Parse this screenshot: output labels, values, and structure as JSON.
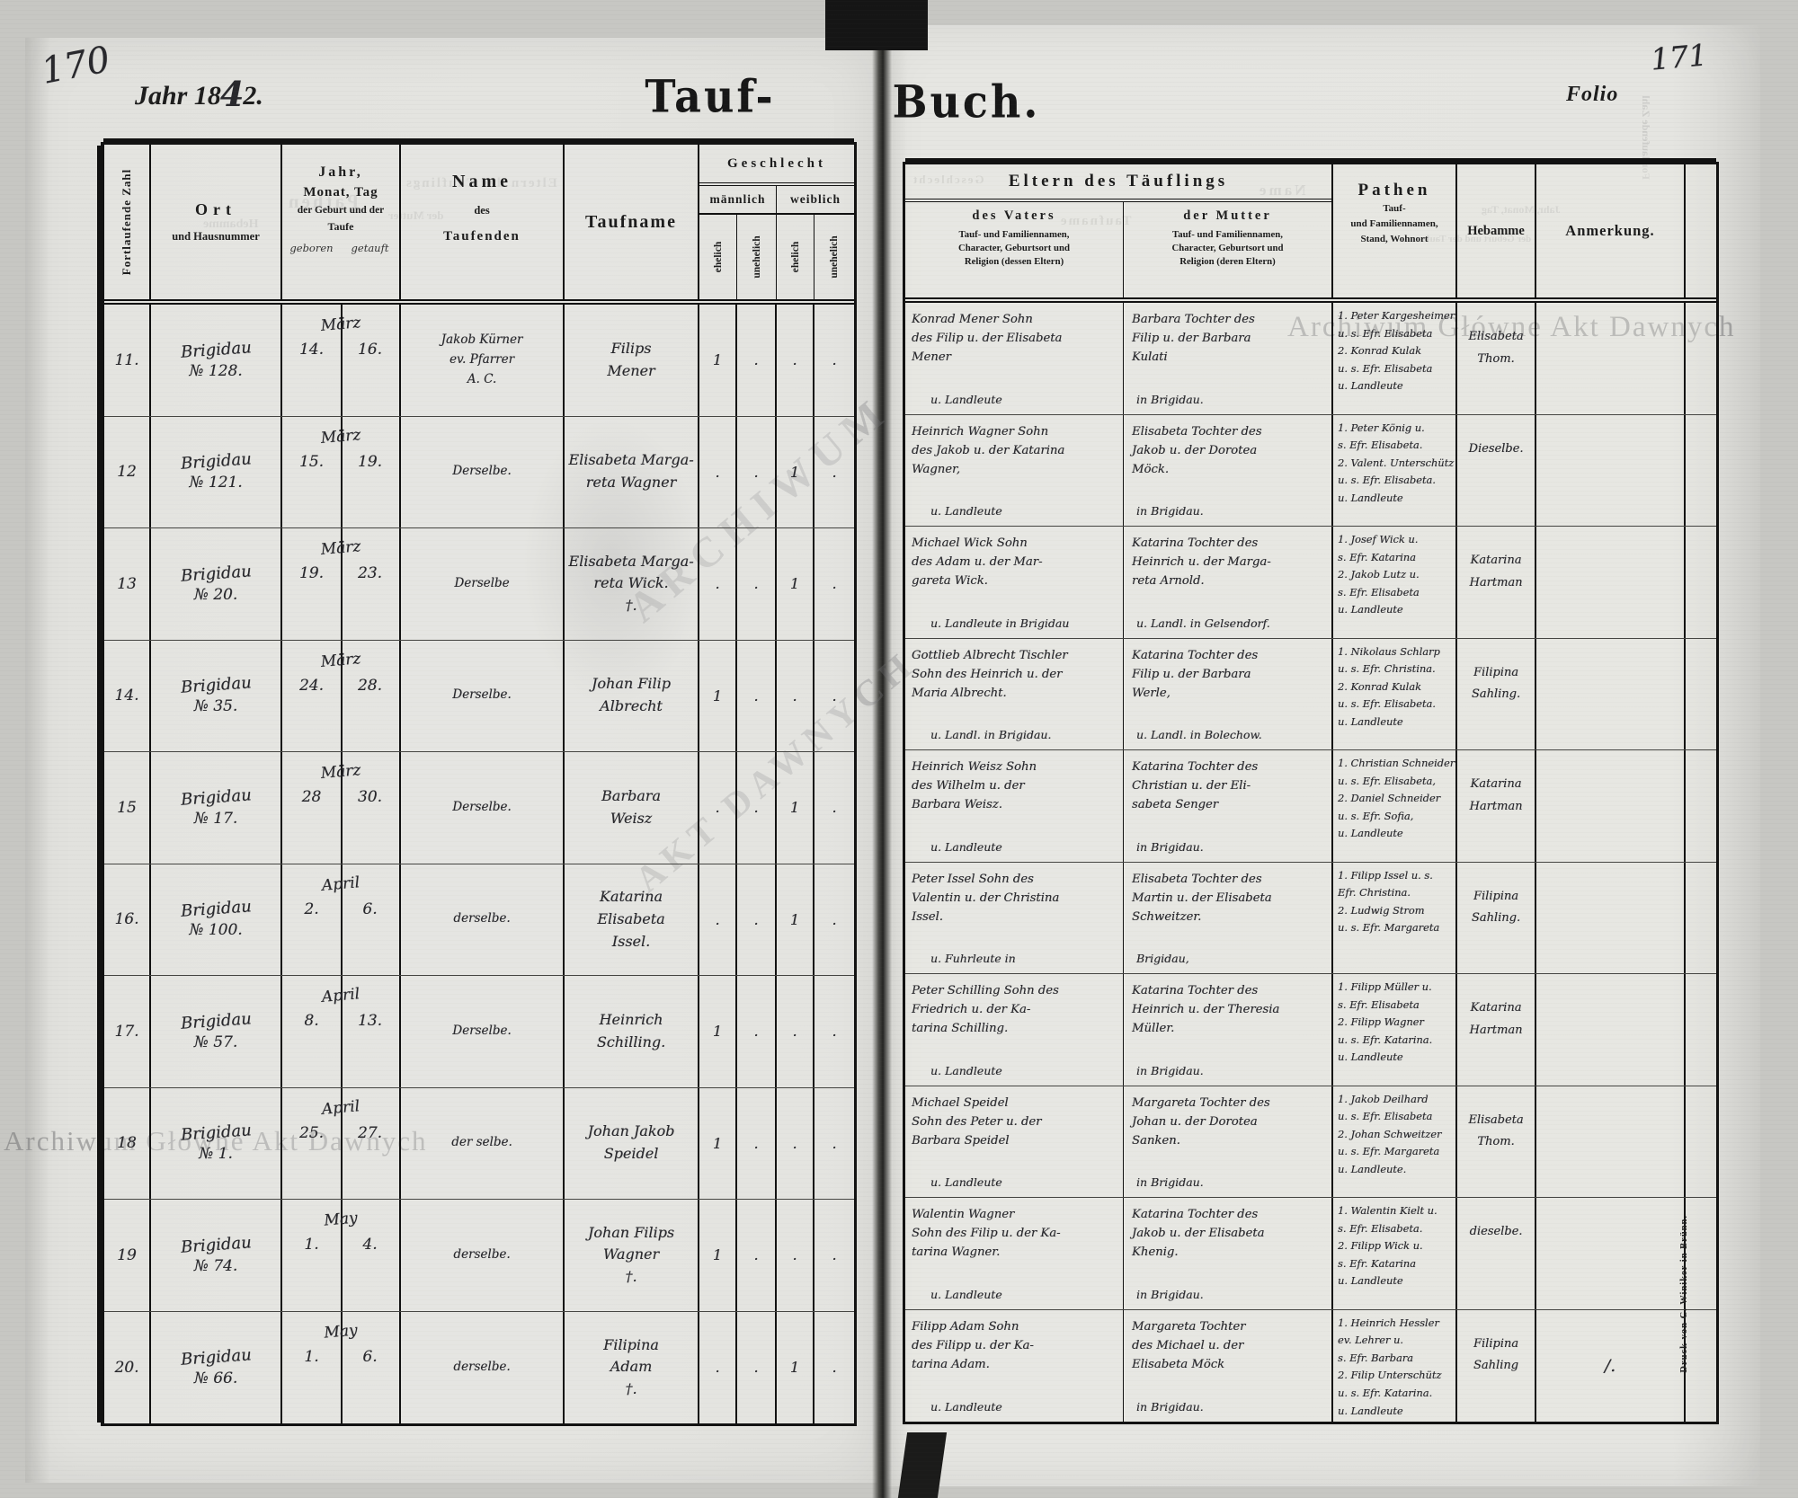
{
  "page": {
    "left_page_number": "170",
    "right_page_number": "171",
    "year_printed_prefix": "Jahr 18",
    "year_hand_digit": "4",
    "year_printed_suffix": "2.",
    "title_left": "Tauf-",
    "title_right": "Buch.",
    "folio_label": "Folio",
    "printer_credit": "Druck von C. Winiker in Brünn."
  },
  "colors": {
    "paper": "#e4e4e0",
    "ink": "#121212",
    "handwriting": "#28282c",
    "watermark": "#6c6c6e"
  },
  "watermark": {
    "bottom_left": "Archiwum Główne Akt Dawnych",
    "top_right": "Archiwum Główne Akt Dawnych",
    "emblem_line1": "ARCHIWUM",
    "emblem_line2": "AKT DAWNYCH"
  },
  "ghosts": {
    "g1": "Pathen",
    "g2": "Hebamme",
    "g3": "der Mutter",
    "g4": "Eltern des Täuflings",
    "g5": "Geschlecht",
    "g6": "Name",
    "g7": "Taufname",
    "g8": "Jahr, Monat, Tag",
    "g9": "Fortlaufende Zahl",
    "g10": "der Geburt und der Taufe"
  },
  "left_header": {
    "col_number": "Fortlaufende Zahl",
    "col_ort_line1": "Ort",
    "col_ort_line2": "und Hausnummer",
    "col_date_line1": "Jahr,",
    "col_date_line2": "Monat, Tag",
    "col_date_line3": "der Geburt und der",
    "col_date_line4": "Taufe",
    "col_date_sub_born": "geboren",
    "col_date_sub_baptized": "getauft",
    "col_name_line1": "Name",
    "col_name_line2": "des",
    "col_name_line3": "Taufenden",
    "col_taufname": "Taufname",
    "col_geschlecht": "Geschlecht",
    "col_maennlich": "männlich",
    "col_weiblich": "weiblich",
    "col_ehelich": "ehelich",
    "col_unehelich": "unehelich"
  },
  "right_header": {
    "col_eltern": "Eltern des Täuflings",
    "col_vater": "des Vaters",
    "col_vater_desc1": "Tauf- und Familiennamen,",
    "col_vater_desc2": "Character, Geburtsort und",
    "col_vater_desc3": "Religion (dessen Eltern)",
    "col_mutter": "der Mutter",
    "col_mutter_desc1": "Tauf- und Familiennamen,",
    "col_mutter_desc2": "Character, Geburtsort und",
    "col_mutter_desc3": "Religion (deren Eltern)",
    "col_pathen": "Pathen",
    "col_pathen_desc1": "Tauf-",
    "col_pathen_desc2": "und Familiennamen,",
    "col_pathen_desc3": "Stand, Wohnort",
    "col_hebamme": "Hebamme",
    "col_anmerkung": "Anmerkung."
  },
  "rows": [
    {
      "nr": "11.",
      "ort1": "Brigidau",
      "ort2": "№ 128.",
      "monat": "März",
      "geboren": "14.",
      "getauft": "16.",
      "taufende": "Jakob Kürner\nev. Pfarrer\nA. C.",
      "taufname": "Filips\nMener",
      "g_me": "1",
      "g_mu": ".",
      "g_we": ".",
      "g_wu": ".",
      "vater": "Konrad Mener Sohn\ndes Filip u. der Elisabeta\nMener",
      "vater_res": "u. Landleute",
      "mutter": "Barbara Tochter des\nFilip u. der Barbara\nKulati",
      "mutter_res": "in Brigidau.",
      "pathen": "1. Peter Kargesheimer\nu. s. Efr. Elisabeta\n2. Konrad Kulak\nu. s. Efr. Elisabeta\nu. Landleute",
      "hebamme": "Elisabeta\nThom.",
      "anmerkung": ""
    },
    {
      "nr": "12",
      "ort1": "Brigidau",
      "ort2": "№ 121.",
      "monat": "März",
      "geboren": "15.",
      "getauft": "19.",
      "taufende": "Derselbe.",
      "taufname": "Elisabeta Marga-\nreta Wagner",
      "g_me": ".",
      "g_mu": ".",
      "g_we": "1",
      "g_wu": ".",
      "vater": "Heinrich Wagner Sohn\ndes Jakob u. der Katarina\nWagner,",
      "vater_res": "u. Landleute",
      "mutter": "Elisabeta Tochter des\nJakob u. der Dorotea\nMöck.",
      "mutter_res": "in Brigidau.",
      "pathen": "1. Peter König u.\ns. Efr. Elisabeta.\n2. Valent. Unterschütz\nu. s. Efr. Elisabeta.\nu. Landleute",
      "hebamme": "Dieselbe.",
      "anmerkung": ""
    },
    {
      "nr": "13",
      "ort1": "Brigidau",
      "ort2": "№ 20.",
      "monat": "März",
      "geboren": "19.",
      "getauft": "23.",
      "taufende": "Derselbe",
      "taufname": "Elisabeta Marga-\nreta Wick.\n†.",
      "g_me": ".",
      "g_mu": ".",
      "g_we": "1",
      "g_wu": ".",
      "vater": "Michael Wick Sohn\ndes Adam u. der Mar-\ngareta Wick.",
      "vater_res": "u. Landleute in Brigidau",
      "mutter": "Katarina Tochter des\nHeinrich u. der Marga-\nreta Arnold.",
      "mutter_res": "u. Landl. in Gelsendorf.",
      "pathen": "1. Josef Wick u.\ns. Efr. Katarina\n2. Jakob Lutz u.\ns. Efr. Elisabeta\nu. Landleute",
      "hebamme": "Katarina\nHartman",
      "anmerkung": ""
    },
    {
      "nr": "14.",
      "ort1": "Brigidau",
      "ort2": "№ 35.",
      "monat": "März",
      "geboren": "24.",
      "getauft": "28.",
      "taufende": "Derselbe.",
      "taufname": "Johan Filip\nAlbrecht",
      "g_me": "1",
      "g_mu": ".",
      "g_we": ".",
      "g_wu": ".",
      "vater": "Gottlieb Albrecht Tischler\nSohn des Heinrich u. der\nMaria Albrecht.",
      "vater_res": "u. Landl. in Brigidau.",
      "mutter": "Katarina Tochter des\nFilip u. der Barbara\nWerle,",
      "mutter_res": "u. Landl. in Bolechow.",
      "pathen": "1. Nikolaus Schlarp\nu. s. Efr. Christina.\n2. Konrad Kulak\nu. s. Efr. Elisabeta.\nu. Landleute",
      "hebamme": "Filipina\nSahling.",
      "anmerkung": ""
    },
    {
      "nr": "15",
      "ort1": "Brigidau",
      "ort2": "№ 17.",
      "monat": "März",
      "geboren": "28",
      "getauft": "30.",
      "taufende": "Derselbe.",
      "taufname": "Barbara\nWeisz",
      "g_me": ".",
      "g_mu": ".",
      "g_we": "1",
      "g_wu": ".",
      "vater": "Heinrich Weisz Sohn\ndes Wilhelm u. der\nBarbara Weisz.",
      "vater_res": "u. Landleute",
      "mutter": "Katarina Tochter des\nChristian u. der Eli-\nsabeta Senger",
      "mutter_res": "in Brigidau.",
      "pathen": "1. Christian Schneider\nu. s. Efr. Elisabeta,\n2. Daniel Schneider\nu. s. Efr. Sofia,\nu. Landleute",
      "hebamme": "Katarina\nHartman",
      "anmerkung": ""
    },
    {
      "nr": "16.",
      "ort1": "Brigidau",
      "ort2": "№ 100.",
      "monat": "April",
      "geboren": "2.",
      "getauft": "6.",
      "taufende": "derselbe.",
      "taufname": "Katarina Elisabeta\nIssel.",
      "g_me": ".",
      "g_mu": ".",
      "g_we": "1",
      "g_wu": ".",
      "vater": "Peter Issel Sohn des\nValentin u. der Christina\nIssel.",
      "vater_res": "u. Fuhrleute in",
      "mutter": "Elisabeta Tochter des\nMartin u. der Elisabeta\nSchweitzer.",
      "mutter_res": "Brigidau,",
      "pathen": "1. Filipp Issel u. s.\nEfr. Christina.\n2. Ludwig Strom\nu. s. Efr. Margareta",
      "hebamme": "Filipina\nSahling.",
      "anmerkung": ""
    },
    {
      "nr": "17.",
      "ort1": "Brigidau",
      "ort2": "№ 57.",
      "monat": "April",
      "geboren": "8.",
      "getauft": "13.",
      "taufende": "Derselbe.",
      "taufname": "Heinrich\nSchilling.",
      "g_me": "1",
      "g_mu": ".",
      "g_we": ".",
      "g_wu": ".",
      "vater": "Peter Schilling Sohn des\nFriedrich u. der Ka-\ntarina Schilling.",
      "vater_res": "u. Landleute",
      "mutter": "Katarina Tochter des\nHeinrich u. der Theresia\nMüller.",
      "mutter_res": "in Brigidau.",
      "pathen": "1. Filipp Müller u.\ns. Efr. Elisabeta\n2. Filipp Wagner\nu. s. Efr. Katarina.\nu. Landleute",
      "hebamme": "Katarina\nHartman",
      "anmerkung": ""
    },
    {
      "nr": "18",
      "ort1": "Brigidau",
      "ort2": "№ 1.",
      "monat": "April",
      "geboren": "25.",
      "getauft": "27.",
      "taufende": "der selbe.",
      "taufname": "Johan Jakob\nSpeidel",
      "g_me": "1",
      "g_mu": ".",
      "g_we": ".",
      "g_wu": ".",
      "vater": "Michael Speidel\nSohn des Peter u. der\nBarbara Speidel",
      "vater_res": "u. Landleute",
      "mutter": "Margareta Tochter des\nJohan u. der Dorotea\nSanken.",
      "mutter_res": "in Brigidau.",
      "pathen": "1. Jakob Deilhard\nu. s. Efr. Elisabeta\n2. Johan Schweitzer\nu. s. Efr. Margareta\nu. Landleute.",
      "hebamme": "Elisabeta\nThom.",
      "anmerkung": ""
    },
    {
      "nr": "19",
      "ort1": "Brigidau",
      "ort2": "№ 74.",
      "monat": "May",
      "geboren": "1.",
      "getauft": "4.",
      "taufende": "derselbe.",
      "taufname": "Johan Filips\nWagner\n†.",
      "g_me": "1",
      "g_mu": ".",
      "g_we": ".",
      "g_wu": ".",
      "vater": "Walentin Wagner\nSohn des Filip u. der Ka-\ntarina Wagner.",
      "vater_res": "u. Landleute",
      "mutter": "Katarina Tochter des\nJakob u. der Elisabeta\nKhenig.",
      "mutter_res": "in Brigidau.",
      "pathen": "1. Walentin Kielt u.\ns. Efr. Elisabeta.\n2. Filipp Wick u.\ns. Efr. Katarina\nu. Landleute",
      "hebamme": "dieselbe.",
      "anmerkung": ""
    },
    {
      "nr": "20.",
      "ort1": "Brigidau",
      "ort2": "№ 66.",
      "monat": "May",
      "geboren": "1.",
      "getauft": "6.",
      "taufende": "derselbe.",
      "taufname": "Filipina\nAdam\n†.",
      "g_me": ".",
      "g_mu": ".",
      "g_we": "1",
      "g_wu": ".",
      "vater": "Filipp Adam Sohn\ndes Filipp u. der Ka-\ntarina Adam.",
      "vater_res": "u. Landleute",
      "mutter": "Margareta Tochter\ndes Michael u. der\nElisabeta Möck",
      "mutter_res": "in Brigidau.",
      "pathen": "1. Heinrich Hessler\nev. Lehrer u.\ns. Efr. Barbara\n2. Filip Unterschütz\nu. s. Efr. Katarina.\nu. Landleute",
      "hebamme": "Filipina\nSahling",
      "anmerkung": "/."
    }
  ]
}
